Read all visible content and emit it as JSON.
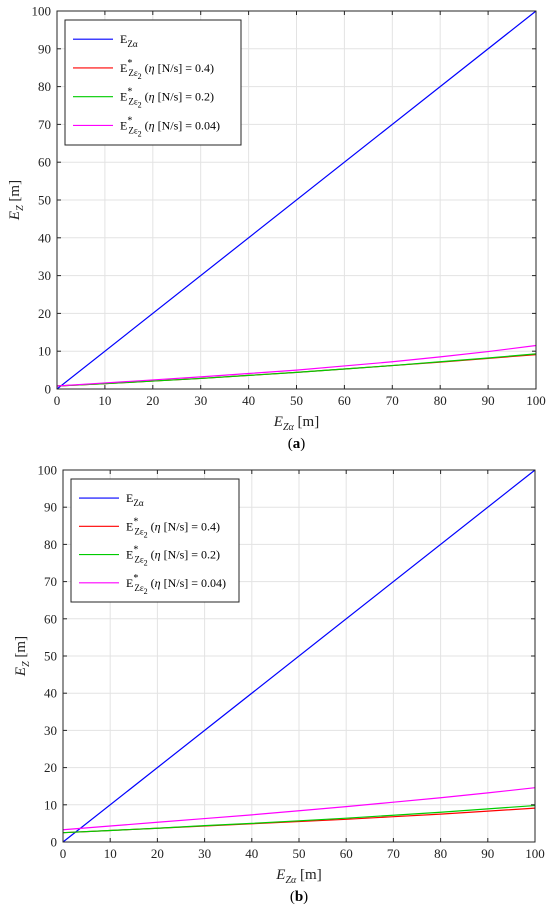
{
  "chart_data": [
    {
      "panel_id": "a",
      "caption": "(a)",
      "type": "line",
      "xlabel": "E_{Zα} [m]",
      "ylabel": "E_Z [m]",
      "xlim": [
        0,
        100
      ],
      "ylim": [
        0,
        100
      ],
      "xticks": [
        0,
        10,
        20,
        30,
        40,
        50,
        60,
        70,
        80,
        90,
        100
      ],
      "yticks": [
        0,
        10,
        20,
        30,
        40,
        50,
        60,
        70,
        80,
        90,
        100
      ],
      "grid": true,
      "legend_position": "top-left",
      "series": [
        {
          "name": "E_Zα",
          "color": "#0000ff",
          "x": [
            0,
            100
          ],
          "y": [
            0,
            100
          ]
        },
        {
          "name": "E*_Zε2 (η [N/s] = 0.4)",
          "color": "#ff0000",
          "x": [
            0,
            10,
            20,
            30,
            40,
            50,
            60,
            70,
            80,
            90,
            100
          ],
          "y": [
            0.8,
            1.4,
            2.1,
            2.8,
            3.6,
            4.4,
            5.3,
            6.2,
            7.1,
            8.1,
            9.1
          ]
        },
        {
          "name": "E*_Zε2 (η [N/s] = 0.2)",
          "color": "#00cc00",
          "x": [
            0,
            10,
            20,
            30,
            40,
            50,
            60,
            70,
            80,
            90,
            100
          ],
          "y": [
            0.8,
            1.4,
            2.1,
            2.8,
            3.6,
            4.4,
            5.3,
            6.2,
            7.2,
            8.2,
            9.3
          ]
        },
        {
          "name": "E*_Zε2 (η [N/s] = 0.04)",
          "color": "#ff00ff",
          "x": [
            0,
            10,
            20,
            30,
            40,
            50,
            60,
            70,
            80,
            90,
            100
          ],
          "y": [
            0.8,
            1.6,
            2.4,
            3.2,
            4.1,
            5.0,
            6.1,
            7.2,
            8.5,
            9.9,
            11.5
          ]
        }
      ]
    },
    {
      "panel_id": "b",
      "caption": "(b)",
      "type": "line",
      "xlabel": "E_{Zα} [m]",
      "ylabel": "E_Z [m]",
      "xlim": [
        0,
        100
      ],
      "ylim": [
        0,
        100
      ],
      "xticks": [
        0,
        10,
        20,
        30,
        40,
        50,
        60,
        70,
        80,
        90,
        100
      ],
      "yticks": [
        0,
        10,
        20,
        30,
        40,
        50,
        60,
        70,
        80,
        90,
        100
      ],
      "grid": true,
      "legend_position": "top-left",
      "series": [
        {
          "name": "E_Zα",
          "color": "#0000ff",
          "x": [
            0,
            100
          ],
          "y": [
            0,
            100
          ]
        },
        {
          "name": "E*_Zε2 (η [N/s] = 0.4)",
          "color": "#ff0000",
          "x": [
            0,
            10,
            20,
            30,
            40,
            50,
            60,
            70,
            80,
            90,
            100
          ],
          "y": [
            2.5,
            3.1,
            3.7,
            4.3,
            4.9,
            5.5,
            6.1,
            6.8,
            7.5,
            8.3,
            9.1
          ]
        },
        {
          "name": "E*_Zε2 (η [N/s] = 0.2)",
          "color": "#00cc00",
          "x": [
            0,
            10,
            20,
            30,
            40,
            50,
            60,
            70,
            80,
            90,
            100
          ],
          "y": [
            2.5,
            3.1,
            3.7,
            4.4,
            5.0,
            5.7,
            6.4,
            7.2,
            8.0,
            8.9,
            9.8
          ]
        },
        {
          "name": "E*_Zε2 (η [N/s] = 0.04)",
          "color": "#ff00ff",
          "x": [
            0,
            10,
            20,
            30,
            40,
            50,
            60,
            70,
            80,
            90,
            100
          ],
          "y": [
            3.3,
            4.3,
            5.3,
            6.3,
            7.3,
            8.4,
            9.5,
            10.7,
            11.9,
            13.2,
            14.6
          ]
        }
      ]
    }
  ]
}
